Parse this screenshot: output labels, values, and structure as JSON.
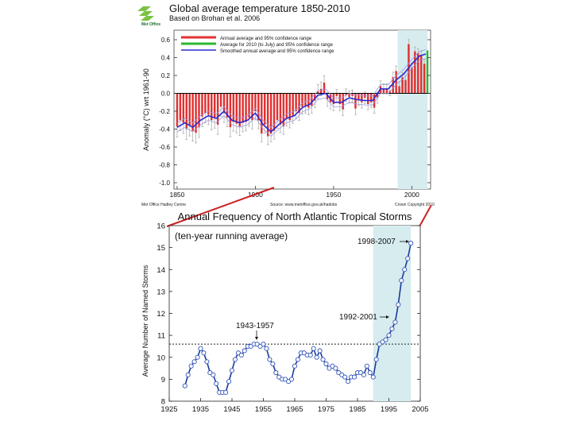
{
  "colors": {
    "highlight_fill": "#d6ecef",
    "top_bar": "#e03030",
    "top_smooth": "#2a2ad0",
    "top_2010": "#2db82d",
    "error_bar": "#b0b0b0",
    "zero_line": "#000000",
    "bottom_line": "#1a3b9a",
    "bottom_marker_fill": "#ffffff",
    "bottom_marker_stroke": "#3355bb",
    "connector": "#cc2222",
    "text": "#111111",
    "logo_green": "#7cc242"
  },
  "top": {
    "logo": {
      "name": "Met Office"
    },
    "title": "Global average temperature 1850-2010",
    "subtitle": "Based on Brohan et al. 2006",
    "legend": [
      "Annual average and 95% confidence range",
      "Average for 2010 (to July) and 95% confidence range",
      "Smoothed annual average and 95% confidence range"
    ],
    "footer_left": "Met Office Hadley Centre",
    "footer_source": "Source: www.metoffice.gov.uk/hadobs",
    "footer_right": "Crown Copyright 2010"
  },
  "bottom": {
    "annotation_peak": "1998-2007",
    "annotation_recent": "1992-2001",
    "annotation_mid": "1943-1957"
  },
  "chart_data": [
    {
      "type": "bar",
      "title": "Global average temperature 1850-2010",
      "ylabel": "Anomaly (°C) wrt 1961-90",
      "xlabel": "",
      "xlim": [
        1848,
        2012
      ],
      "ylim": [
        -1.0,
        0.6
      ],
      "x_ticks": [
        1850,
        1900,
        1950,
        2000
      ],
      "y_ticks": [
        -1.0,
        -0.8,
        -0.6,
        -0.4,
        -0.2,
        0.0,
        0.2,
        0.4,
        0.6
      ],
      "y_tick_labels": [
        "-1.0",
        "-0.8",
        "-0.6",
        "-0.4",
        "-0.2",
        "0.0",
        "0.2",
        "0.4",
        "0.6"
      ],
      "highlight_range": [
        1991,
        2010
      ],
      "smoothed_series": {
        "name": "Smoothed annual average",
        "x": [
          1850,
          1855,
          1860,
          1865,
          1870,
          1875,
          1880,
          1885,
          1890,
          1895,
          1900,
          1905,
          1910,
          1915,
          1920,
          1925,
          1930,
          1935,
          1940,
          1945,
          1950,
          1955,
          1960,
          1965,
          1970,
          1975,
          1980,
          1985,
          1990,
          1995,
          2000,
          2005,
          2009
        ],
        "y": [
          -0.38,
          -0.33,
          -0.38,
          -0.3,
          -0.25,
          -0.28,
          -0.2,
          -0.3,
          -0.33,
          -0.3,
          -0.22,
          -0.35,
          -0.43,
          -0.35,
          -0.28,
          -0.25,
          -0.16,
          -0.12,
          -0.02,
          0.0,
          -0.1,
          -0.1,
          -0.05,
          -0.07,
          -0.08,
          -0.08,
          0.05,
          0.05,
          0.15,
          0.22,
          0.33,
          0.42,
          0.44
        ]
      },
      "bar_series": {
        "name": "Annual average",
        "x": [
          1850,
          1852,
          1854,
          1856,
          1858,
          1860,
          1862,
          1864,
          1866,
          1868,
          1870,
          1872,
          1874,
          1876,
          1878,
          1880,
          1882,
          1884,
          1886,
          1888,
          1890,
          1892,
          1894,
          1896,
          1898,
          1900,
          1902,
          1904,
          1906,
          1908,
          1910,
          1912,
          1914,
          1916,
          1918,
          1920,
          1922,
          1924,
          1926,
          1928,
          1930,
          1932,
          1934,
          1936,
          1938,
          1940,
          1942,
          1944,
          1946,
          1948,
          1950,
          1952,
          1954,
          1956,
          1958,
          1960,
          1962,
          1964,
          1966,
          1968,
          1970,
          1972,
          1974,
          1976,
          1978,
          1980,
          1982,
          1984,
          1986,
          1988,
          1990,
          1992,
          1994,
          1996,
          1998,
          2000,
          2002,
          2004,
          2006,
          2008
        ],
        "y": [
          -0.37,
          -0.3,
          -0.33,
          -0.4,
          -0.36,
          -0.42,
          -0.44,
          -0.38,
          -0.26,
          -0.22,
          -0.24,
          -0.3,
          -0.28,
          -0.35,
          -0.15,
          -0.22,
          -0.27,
          -0.38,
          -0.32,
          -0.34,
          -0.37,
          -0.33,
          -0.32,
          -0.27,
          -0.3,
          -0.2,
          -0.3,
          -0.45,
          -0.35,
          -0.48,
          -0.45,
          -0.42,
          -0.3,
          -0.35,
          -0.37,
          -0.28,
          -0.3,
          -0.25,
          -0.2,
          -0.22,
          -0.15,
          -0.14,
          -0.16,
          -0.14,
          -0.08,
          0.02,
          0.05,
          0.12,
          -0.07,
          -0.1,
          -0.12,
          -0.03,
          -0.12,
          -0.18,
          -0.02,
          -0.04,
          -0.03,
          -0.17,
          -0.07,
          -0.1,
          -0.05,
          -0.12,
          -0.1,
          -0.16,
          -0.05,
          0.08,
          0.05,
          0.05,
          0.03,
          0.18,
          0.25,
          0.08,
          0.18,
          0.15,
          0.55,
          0.29,
          0.47,
          0.45,
          0.42,
          0.33
        ]
      },
      "bar_2010": {
        "name": "Average for 2010 (to July)",
        "x": 2010,
        "y": 0.48
      }
    },
    {
      "type": "line",
      "title": "Annual Frequency of North Atlantic Tropical Storms",
      "subtitle": "(ten-year running average)",
      "xlabel": "",
      "ylabel": "Average Number of Named Storms",
      "xlim": [
        1925,
        2005
      ],
      "ylim": [
        8,
        16
      ],
      "x_ticks": [
        1925,
        1935,
        1945,
        1955,
        1965,
        1975,
        1985,
        1995,
        2005
      ],
      "y_ticks": [
        8,
        9,
        10,
        11,
        12,
        13,
        14,
        15,
        16
      ],
      "reference_line": 10.6,
      "highlight_range": [
        1990,
        2002
      ],
      "series": [
        {
          "name": "Named storms (10-yr running mean)",
          "x": [
            1930,
            1931,
            1932,
            1933,
            1934,
            1935,
            1936,
            1937,
            1938,
            1939,
            1940,
            1941,
            1942,
            1943,
            1944,
            1945,
            1946,
            1947,
            1948,
            1949,
            1950,
            1951,
            1952,
            1953,
            1954,
            1955,
            1956,
            1957,
            1958,
            1959,
            1960,
            1961,
            1962,
            1963,
            1964,
            1965,
            1966,
            1967,
            1968,
            1969,
            1970,
            1971,
            1972,
            1973,
            1974,
            1975,
            1976,
            1977,
            1978,
            1979,
            1980,
            1981,
            1982,
            1983,
            1984,
            1985,
            1986,
            1987,
            1988,
            1989,
            1990,
            1991,
            1992,
            1993,
            1994,
            1995,
            1996,
            1997,
            1998,
            1999,
            2000,
            2001,
            2002
          ],
          "y": [
            8.7,
            9.2,
            9.6,
            9.8,
            10.0,
            10.4,
            10.2,
            9.8,
            9.3,
            9.2,
            8.8,
            8.4,
            8.4,
            8.4,
            8.9,
            9.4,
            9.9,
            10.2,
            10.1,
            10.3,
            10.5,
            10.5,
            10.6,
            10.6,
            10.5,
            10.6,
            10.4,
            9.9,
            9.7,
            9.3,
            9.1,
            9.0,
            9.0,
            8.9,
            9.0,
            9.6,
            9.9,
            10.2,
            10.2,
            10.1,
            10.1,
            10.4,
            10.0,
            10.3,
            9.9,
            9.7,
            9.5,
            9.6,
            9.5,
            9.3,
            9.2,
            9.1,
            8.9,
            9.1,
            9.1,
            9.3,
            9.3,
            9.2,
            9.6,
            9.3,
            9.1,
            9.9,
            10.6,
            10.7,
            10.8,
            11.0,
            11.3,
            11.6,
            12.4,
            13.5,
            14.0,
            14.5,
            15.2
          ]
        }
      ]
    }
  ]
}
